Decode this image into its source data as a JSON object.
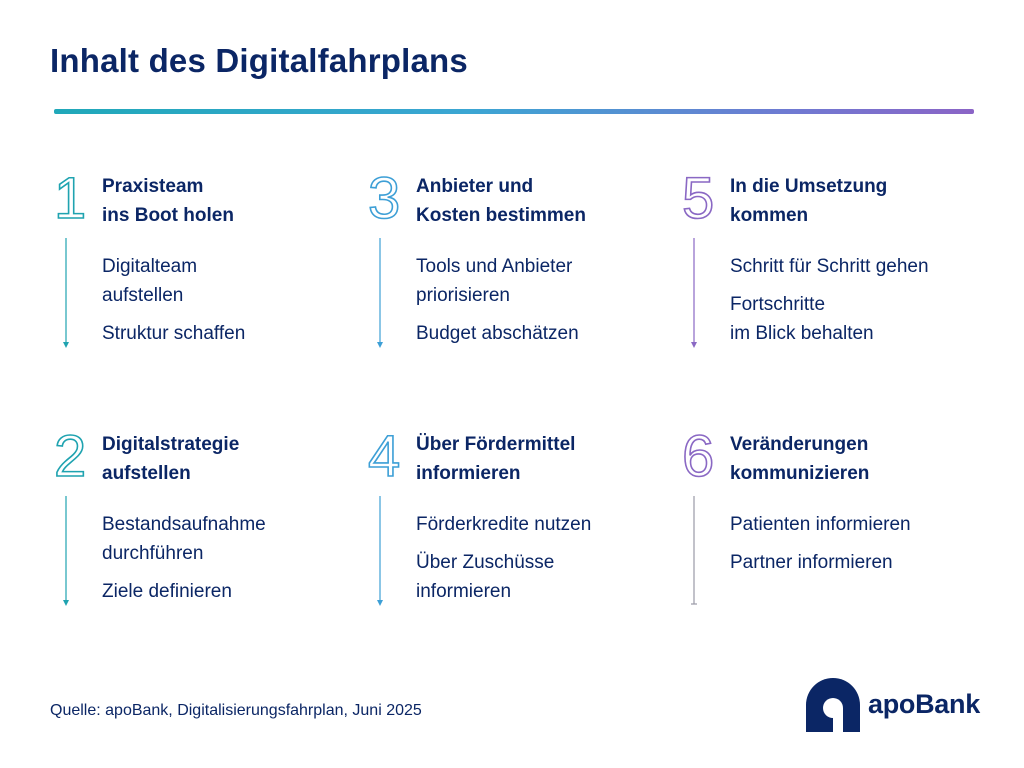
{
  "title": "Inhalt des Digitalfahrplans",
  "colors": {
    "navy": "#0b2665",
    "teal": "#1fa3b0",
    "blue": "#3d9fd6",
    "purple": "#8a68c4",
    "gray": "#9a9aa6"
  },
  "steps": [
    {
      "number": "1",
      "title": "Praxisteam\nins Boot holen",
      "items": [
        "Digitalteam\naufstellen",
        "Struktur schaffen"
      ]
    },
    {
      "number": "2",
      "title": "Digitalstrategie\naufstellen",
      "items": [
        "Bestandsaufnahme\ndurchführen",
        "Ziele definieren"
      ]
    },
    {
      "number": "3",
      "title": "Anbieter und\nKosten bestimmen",
      "items": [
        "Tools und Anbieter\npriorisieren",
        "Budget abschätzen"
      ]
    },
    {
      "number": "4",
      "title": "Über Fördermittel\ninformieren",
      "items": [
        "Förderkredite nutzen",
        "Über Zuschüsse\ninformieren"
      ]
    },
    {
      "number": "5",
      "title": "In die Umsetzung\nkommen",
      "items": [
        "Schritt für Schritt gehen",
        "Fortschritte\nim Blick behalten"
      ]
    },
    {
      "number": "6",
      "title": "Veränderungen\nkommunizieren",
      "items": [
        "Patienten informieren",
        "Partner informieren"
      ]
    }
  ],
  "source": "Quelle: apoBank, Digitalisierungsfahrplan, Juni 2025",
  "logo_text": "apoBank"
}
